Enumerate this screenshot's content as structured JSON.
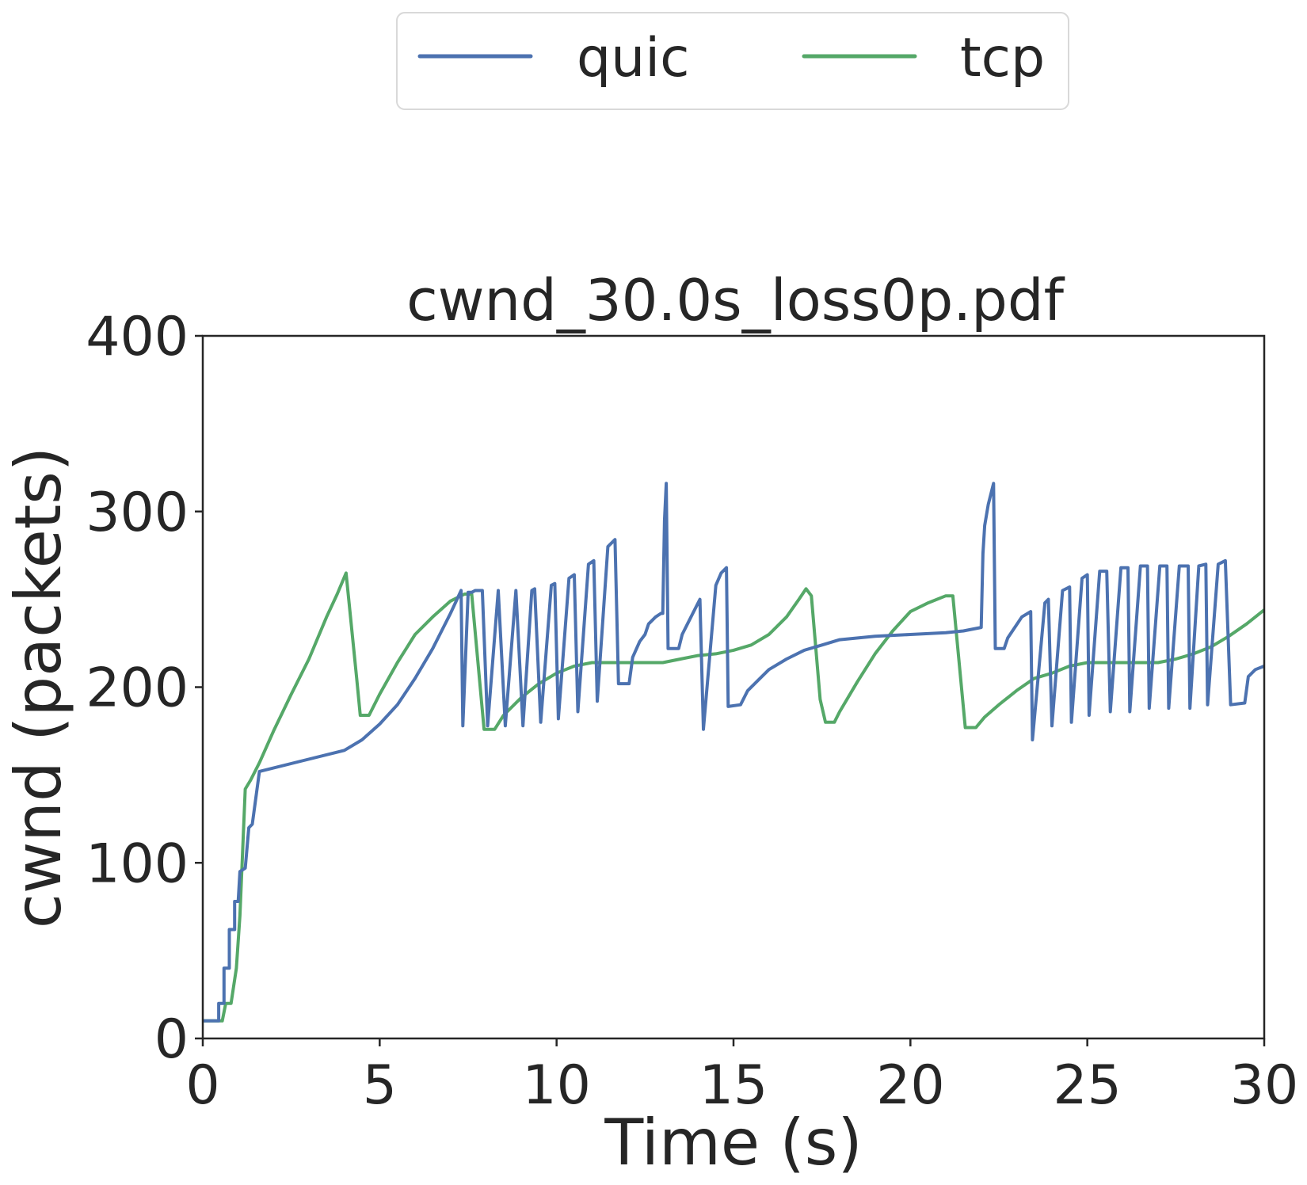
{
  "chart_data": {
    "type": "line",
    "title": "cwnd_30.0s_loss0p.pdf",
    "xlabel": "Time (s)",
    "ylabel": "cwnd (packets)",
    "xlim": [
      0,
      30
    ],
    "ylim": [
      0,
      400
    ],
    "xticks": [
      0,
      5,
      10,
      15,
      20,
      25,
      30
    ],
    "yticks": [
      0,
      100,
      200,
      300,
      400
    ],
    "grid": false,
    "legend": {
      "placement": "top-center",
      "columns": 2
    },
    "series": [
      {
        "name": "quic",
        "color": "#4c72b0",
        "points": [
          [
            0,
            10
          ],
          [
            0.45,
            10
          ],
          [
            0.45,
            20
          ],
          [
            0.6,
            20
          ],
          [
            0.6,
            40
          ],
          [
            0.75,
            40
          ],
          [
            0.75,
            62
          ],
          [
            0.9,
            62
          ],
          [
            0.9,
            78
          ],
          [
            1.0,
            78
          ],
          [
            1.05,
            95
          ],
          [
            1.2,
            97
          ],
          [
            1.3,
            120
          ],
          [
            1.4,
            122
          ],
          [
            1.6,
            152
          ],
          [
            4.0,
            164
          ],
          [
            4.5,
            170
          ],
          [
            5.0,
            179
          ],
          [
            5.5,
            190
          ],
          [
            6.0,
            205
          ],
          [
            6.5,
            222
          ],
          [
            7.0,
            242
          ],
          [
            7.3,
            255
          ],
          [
            7.35,
            178
          ],
          [
            7.5,
            254
          ],
          [
            7.6,
            254
          ],
          [
            7.7,
            255
          ],
          [
            7.9,
            255
          ],
          [
            8.05,
            178
          ],
          [
            8.35,
            255
          ],
          [
            8.55,
            178
          ],
          [
            8.85,
            255
          ],
          [
            9.05,
            178
          ],
          [
            9.3,
            255
          ],
          [
            9.38,
            256
          ],
          [
            9.55,
            180
          ],
          [
            9.85,
            258
          ],
          [
            9.95,
            259
          ],
          [
            10.05,
            182
          ],
          [
            10.35,
            262
          ],
          [
            10.5,
            264
          ],
          [
            10.6,
            186
          ],
          [
            10.9,
            270
          ],
          [
            11.05,
            272
          ],
          [
            11.15,
            192
          ],
          [
            11.45,
            280
          ],
          [
            11.65,
            284
          ],
          [
            11.75,
            202
          ],
          [
            12.05,
            202
          ],
          [
            12.15,
            217
          ],
          [
            12.35,
            226
          ],
          [
            12.5,
            230
          ],
          [
            12.6,
            236
          ],
          [
            12.8,
            240
          ],
          [
            12.95,
            242
          ],
          [
            13.0,
            242
          ],
          [
            13.05,
            295
          ],
          [
            13.1,
            316
          ],
          [
            13.15,
            222
          ],
          [
            13.45,
            222
          ],
          [
            13.55,
            230
          ],
          [
            13.7,
            236
          ],
          [
            13.85,
            242
          ],
          [
            14.05,
            250
          ],
          [
            14.15,
            176
          ],
          [
            14.5,
            258
          ],
          [
            14.65,
            265
          ],
          [
            14.8,
            268
          ],
          [
            14.85,
            189
          ],
          [
            15.2,
            190
          ],
          [
            15.4,
            198
          ],
          [
            15.7,
            204
          ],
          [
            16.0,
            210
          ],
          [
            16.5,
            216
          ],
          [
            17.0,
            221
          ],
          [
            17.5,
            224
          ],
          [
            18.0,
            227
          ],
          [
            19.0,
            229
          ],
          [
            20.0,
            230
          ],
          [
            21.0,
            231
          ],
          [
            21.5,
            232
          ],
          [
            22.0,
            234
          ],
          [
            22.05,
            276
          ],
          [
            22.1,
            292
          ],
          [
            22.2,
            304
          ],
          [
            22.35,
            316
          ],
          [
            22.4,
            222
          ],
          [
            22.65,
            222
          ],
          [
            22.75,
            228
          ],
          [
            22.95,
            234
          ],
          [
            23.15,
            240
          ],
          [
            23.4,
            243
          ],
          [
            23.45,
            170
          ],
          [
            23.8,
            248
          ],
          [
            23.9,
            250
          ],
          [
            24.0,
            178
          ],
          [
            24.3,
            255
          ],
          [
            24.5,
            257
          ],
          [
            24.55,
            180
          ],
          [
            24.85,
            262
          ],
          [
            25.0,
            264
          ],
          [
            25.05,
            184
          ],
          [
            25.35,
            266
          ],
          [
            25.55,
            266
          ],
          [
            25.65,
            186
          ],
          [
            25.95,
            268
          ],
          [
            26.15,
            268
          ],
          [
            26.2,
            186
          ],
          [
            26.5,
            269
          ],
          [
            26.7,
            269
          ],
          [
            26.75,
            188
          ],
          [
            27.05,
            269
          ],
          [
            27.25,
            269
          ],
          [
            27.3,
            188
          ],
          [
            27.6,
            269
          ],
          [
            27.85,
            269
          ],
          [
            27.9,
            188
          ],
          [
            28.15,
            269
          ],
          [
            28.35,
            270
          ],
          [
            28.4,
            190
          ],
          [
            28.7,
            270
          ],
          [
            28.9,
            272
          ],
          [
            29.05,
            190
          ],
          [
            29.45,
            191
          ],
          [
            29.55,
            206
          ],
          [
            29.75,
            210
          ],
          [
            30.0,
            212
          ]
        ]
      },
      {
        "name": "tcp",
        "color": "#55a868",
        "points": [
          [
            0,
            10
          ],
          [
            0.55,
            10
          ],
          [
            0.65,
            20
          ],
          [
            0.8,
            20
          ],
          [
            0.95,
            40
          ],
          [
            1.05,
            70
          ],
          [
            1.2,
            142
          ],
          [
            1.35,
            147
          ],
          [
            1.6,
            157
          ],
          [
            2.0,
            175
          ],
          [
            2.5,
            196
          ],
          [
            3.0,
            216
          ],
          [
            3.5,
            240
          ],
          [
            3.8,
            253
          ],
          [
            4.05,
            265
          ],
          [
            4.35,
            205
          ],
          [
            4.45,
            184
          ],
          [
            4.7,
            184
          ],
          [
            5.0,
            196
          ],
          [
            5.5,
            214
          ],
          [
            6.0,
            230
          ],
          [
            6.5,
            240
          ],
          [
            7.0,
            249
          ],
          [
            7.4,
            253
          ],
          [
            7.6,
            253
          ],
          [
            7.95,
            176
          ],
          [
            8.25,
            176
          ],
          [
            8.5,
            184
          ],
          [
            9.0,
            194
          ],
          [
            9.5,
            202
          ],
          [
            10.0,
            208
          ],
          [
            10.5,
            212
          ],
          [
            11.0,
            214
          ],
          [
            12.0,
            214
          ],
          [
            13.0,
            214
          ],
          [
            13.5,
            216
          ],
          [
            14.0,
            218
          ],
          [
            14.5,
            219
          ],
          [
            15.0,
            221
          ],
          [
            15.5,
            224
          ],
          [
            16.0,
            230
          ],
          [
            16.5,
            240
          ],
          [
            16.85,
            250
          ],
          [
            17.05,
            256
          ],
          [
            17.2,
            252
          ],
          [
            17.45,
            193
          ],
          [
            17.6,
            180
          ],
          [
            17.85,
            180
          ],
          [
            18.0,
            186
          ],
          [
            18.5,
            203
          ],
          [
            19.0,
            219
          ],
          [
            19.5,
            232
          ],
          [
            20.0,
            243
          ],
          [
            20.5,
            248
          ],
          [
            21.0,
            252
          ],
          [
            21.2,
            252
          ],
          [
            21.55,
            177
          ],
          [
            21.85,
            177
          ],
          [
            22.1,
            183
          ],
          [
            22.5,
            190
          ],
          [
            23.0,
            198
          ],
          [
            23.5,
            205
          ],
          [
            24.0,
            208
          ],
          [
            24.5,
            212
          ],
          [
            25.0,
            214
          ],
          [
            26.0,
            214
          ],
          [
            27.0,
            214
          ],
          [
            27.5,
            216
          ],
          [
            28.0,
            219
          ],
          [
            28.5,
            223
          ],
          [
            29.0,
            229
          ],
          [
            29.5,
            236
          ],
          [
            30.0,
            244
          ]
        ]
      }
    ]
  }
}
